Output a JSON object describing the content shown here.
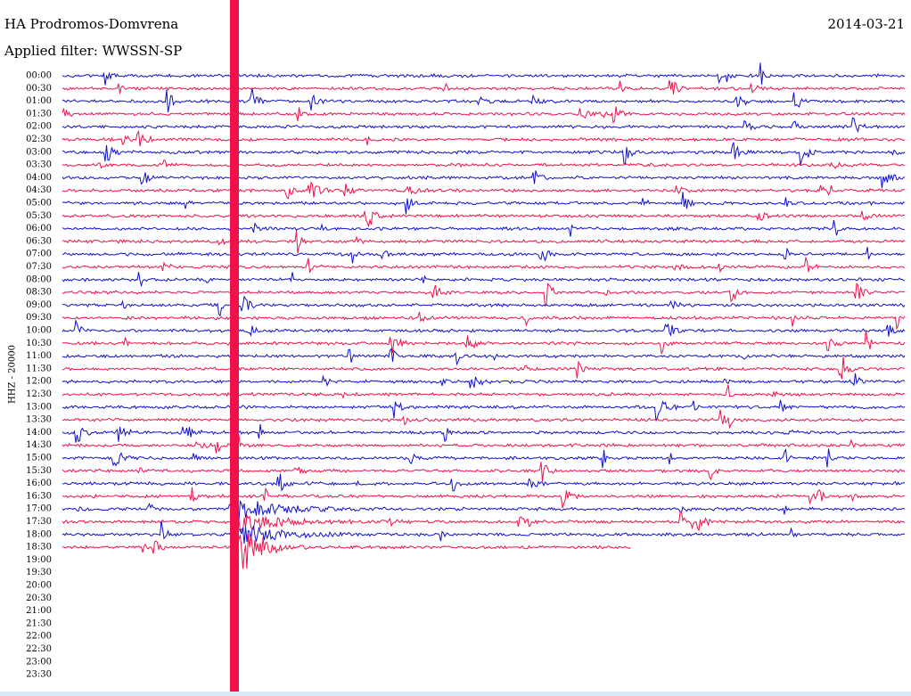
{
  "header": {
    "station": "HA Prodromos-Domvrena",
    "date": "2014-03-21",
    "filter": "Applied filter: WWSSN-SP"
  },
  "channel": "HHZ - 20000",
  "times": [
    "00:00",
    "00:30",
    "01:00",
    "01:30",
    "02:00",
    "02:30",
    "03:00",
    "03:30",
    "04:00",
    "04:30",
    "05:00",
    "05:30",
    "06:00",
    "06:30",
    "07:00",
    "07:30",
    "08:00",
    "08:30",
    "09:00",
    "09:30",
    "10:00",
    "10:30",
    "11:00",
    "11:30",
    "12:00",
    "12:30",
    "13:00",
    "13:30",
    "14:00",
    "14:30",
    "15:00",
    "15:30",
    "16:00",
    "16:30",
    "17:00",
    "17:30",
    "18:00",
    "18:30",
    "19:00",
    "19:30",
    "20:00",
    "20:30",
    "21:00",
    "21:30",
    "22:00",
    "22:30",
    "23:00",
    "23:30"
  ]
}
